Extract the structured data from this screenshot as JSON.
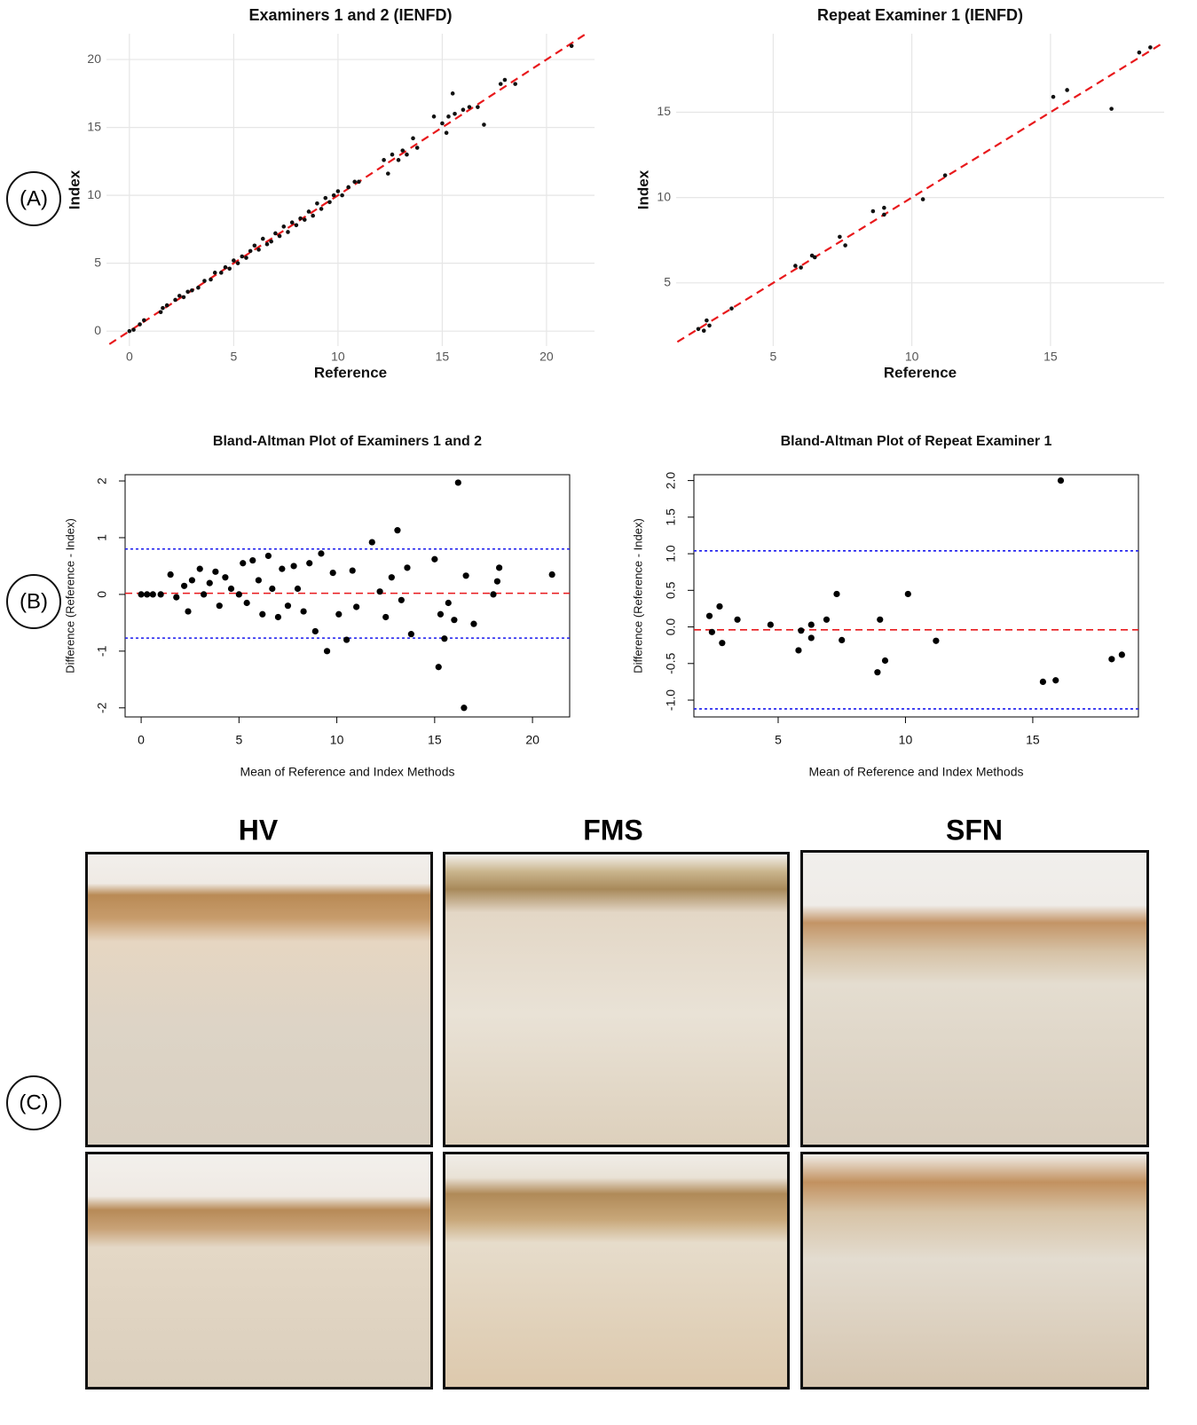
{
  "chart_data": [
    {
      "type": "scatter",
      "style": "ggplot",
      "title": "Examiners 1 and 2 (IENFD)",
      "xlabel": "Reference",
      "ylabel": "Index",
      "x": [
        0,
        0.2,
        0.5,
        0.7,
        1.5,
        1.6,
        1.8,
        2.2,
        2.4,
        2.6,
        2.8,
        3.0,
        3.3,
        3.6,
        3.9,
        4.1,
        4.4,
        4.6,
        4.8,
        5.0,
        5.2,
        5.4,
        5.6,
        5.8,
        6.0,
        6.2,
        6.4,
        6.6,
        6.8,
        7.0,
        7.2,
        7.4,
        7.6,
        7.8,
        8.0,
        8.2,
        8.4,
        8.6,
        8.8,
        9.0,
        9.2,
        9.4,
        9.6,
        9.8,
        10.0,
        10.2,
        10.5,
        10.8,
        11.0,
        12.2,
        12.4,
        12.6,
        12.9,
        13.1,
        13.3,
        13.6,
        13.8,
        14.6,
        15.0,
        15.2,
        15.3,
        15.5,
        15.6,
        16.0,
        16.3,
        16.7,
        17.0,
        17.8,
        18.0,
        18.5,
        21.2
      ],
      "values": [
        0,
        0.1,
        0.5,
        0.8,
        1.4,
        1.7,
        1.9,
        2.3,
        2.6,
        2.5,
        2.9,
        3.0,
        3.2,
        3.7,
        3.8,
        4.3,
        4.3,
        4.7,
        4.6,
        5.2,
        5.0,
        5.5,
        5.4,
        5.9,
        6.3,
        6.0,
        6.8,
        6.4,
        6.6,
        7.2,
        7.0,
        7.7,
        7.3,
        8.0,
        7.8,
        8.3,
        8.2,
        8.8,
        8.5,
        9.4,
        9.0,
        9.8,
        9.5,
        10.0,
        10.3,
        10.0,
        10.6,
        11.0,
        11.0,
        12.6,
        11.6,
        13.0,
        12.6,
        13.3,
        13.0,
        14.2,
        13.5,
        15.8,
        15.3,
        14.6,
        15.8,
        17.5,
        16.0,
        16.3,
        16.5,
        16.5,
        15.2,
        18.2,
        18.5,
        18.2,
        21.0
      ],
      "color": "#111111",
      "xlim": [
        -1.1,
        22.3
      ],
      "ylim": [
        -1.1,
        21.9
      ],
      "xticks": [
        0,
        5,
        10,
        15,
        20
      ],
      "yticks": [
        0,
        5,
        10,
        15,
        20
      ],
      "grid": true,
      "identity_line": {
        "color": "#e8191c"
      }
    },
    {
      "type": "scatter",
      "style": "ggplot",
      "title": "Repeat Examiner 1 (IENFD)",
      "xlabel": "Reference",
      "ylabel": "Index",
      "x": [
        2.3,
        2.5,
        2.6,
        2.7,
        3.5,
        5.8,
        6.0,
        6.4,
        6.5,
        7.4,
        7.6,
        8.6,
        9.0,
        9.0,
        10.4,
        11.2,
        15.1,
        15.6,
        17.2,
        18.2,
        18.6
      ],
      "values": [
        2.3,
        2.2,
        2.8,
        2.5,
        3.5,
        6.0,
        5.9,
        6.6,
        6.5,
        7.7,
        7.2,
        9.2,
        9.4,
        9.0,
        9.9,
        11.3,
        15.9,
        16.3,
        15.2,
        18.5,
        18.8
      ],
      "color": "#111111",
      "xlim": [
        1.5,
        19.1
      ],
      "ylim": [
        1.3,
        19.6
      ],
      "xticks": [
        5,
        10,
        15
      ],
      "yticks": [
        5,
        10,
        15
      ],
      "grid": true,
      "identity_line": {
        "color": "#e8191c"
      }
    },
    {
      "type": "scatter",
      "style": "base",
      "title": "Bland-Altman Plot of Examiners 1 and 2",
      "xlabel": "Mean of Reference and Index Methods",
      "ylabel": "Difference (Reference - Index)",
      "x": [
        0,
        0.3,
        0.6,
        1.0,
        1.5,
        1.8,
        2.2,
        2.4,
        2.6,
        3.0,
        3.2,
        3.5,
        3.8,
        4.0,
        4.3,
        4.6,
        5.0,
        5.2,
        5.4,
        5.7,
        6.0,
        6.2,
        6.5,
        6.7,
        7.0,
        7.2,
        7.5,
        7.8,
        8.0,
        8.3,
        8.6,
        8.9,
        9.2,
        9.5,
        9.8,
        10.1,
        10.5,
        10.8,
        11.0,
        11.8,
        12.2,
        12.5,
        12.8,
        13.1,
        13.3,
        13.6,
        13.8,
        15.0,
        15.2,
        15.3,
        15.5,
        15.7,
        16.0,
        16.2,
        16.5,
        16.6,
        17.0,
        18.0,
        18.2,
        18.3,
        21.0
      ],
      "values": [
        0,
        0,
        0,
        0,
        0.35,
        -0.05,
        0.15,
        -0.3,
        0.25,
        0.45,
        0,
        0.2,
        0.4,
        -0.2,
        0.3,
        0.1,
        0,
        0.55,
        -0.15,
        0.6,
        0.25,
        -0.35,
        0.68,
        0.1,
        -0.4,
        0.45,
        -0.2,
        0.5,
        0.1,
        -0.3,
        0.55,
        -0.65,
        0.72,
        -1.0,
        0.38,
        -0.35,
        -0.8,
        0.42,
        -0.22,
        0.92,
        0.05,
        -0.4,
        0.3,
        1.13,
        -0.1,
        0.47,
        -0.7,
        0.62,
        -1.28,
        -0.35,
        -0.78,
        -0.15,
        -0.45,
        1.97,
        -2.0,
        0.33,
        -0.52,
        0.0,
        0.23,
        0.47,
        0.35
      ],
      "color": "#000000",
      "xlim": [
        -0.82,
        21.9
      ],
      "ylim": [
        -2.16,
        2.11
      ],
      "xticks": [
        0,
        5,
        10,
        15,
        20
      ],
      "yticks": [
        -2,
        -1,
        0,
        1,
        2
      ],
      "grid": false,
      "hlines": [
        {
          "value": 0.02,
          "color": "#e8191c",
          "dash": "8 5"
        },
        {
          "value": 0.8,
          "color": "#1a1aee",
          "dash": "3 3"
        },
        {
          "value": -0.77,
          "color": "#1a1aee",
          "dash": "3 3"
        }
      ]
    },
    {
      "type": "scatter",
      "style": "base",
      "title": "Bland-Altman Plot of Repeat Examiner 1",
      "xlabel": "Mean of Reference and Index Methods",
      "ylabel": "Difference (Reference - Index)",
      "x": [
        2.3,
        2.4,
        2.7,
        2.8,
        3.4,
        4.7,
        5.8,
        5.9,
        6.3,
        6.3,
        6.9,
        7.3,
        7.5,
        8.9,
        9.0,
        9.2,
        10.1,
        11.2,
        15.4,
        15.9,
        16.1,
        18.1,
        18.5
      ],
      "values": [
        0.15,
        -0.07,
        0.28,
        -0.22,
        0.1,
        0.03,
        -0.32,
        -0.05,
        -0.15,
        0.03,
        0.1,
        0.45,
        -0.18,
        -0.62,
        0.1,
        -0.46,
        0.45,
        -0.19,
        -0.75,
        -0.73,
        2.0,
        -0.44,
        -0.38
      ],
      "color": "#000000",
      "xlim": [
        1.69,
        19.15
      ],
      "ylim": [
        -1.23,
        2.08
      ],
      "xticks": [
        5,
        10,
        15
      ],
      "yticks": [
        {
          "value": -1,
          "label": "-1.0"
        },
        -0.5,
        {
          "value": 0,
          "label": "0.0"
        },
        0.5,
        {
          "value": 1,
          "label": "1.0"
        },
        1.5,
        {
          "value": 2,
          "label": "2.0"
        }
      ],
      "grid": false,
      "hlines": [
        {
          "value": -0.04,
          "color": "#e8191c",
          "dash": "8 5"
        },
        {
          "value": 1.04,
          "color": "#1a1aee",
          "dash": "3 3"
        },
        {
          "value": -1.12,
          "color": "#1a1aee",
          "dash": "3 3"
        }
      ]
    }
  ],
  "panels": {
    "labels": [
      "(A)",
      "(B)",
      "(C)"
    ],
    "image_titles": [
      "HV",
      "FMS",
      "SFN"
    ]
  }
}
